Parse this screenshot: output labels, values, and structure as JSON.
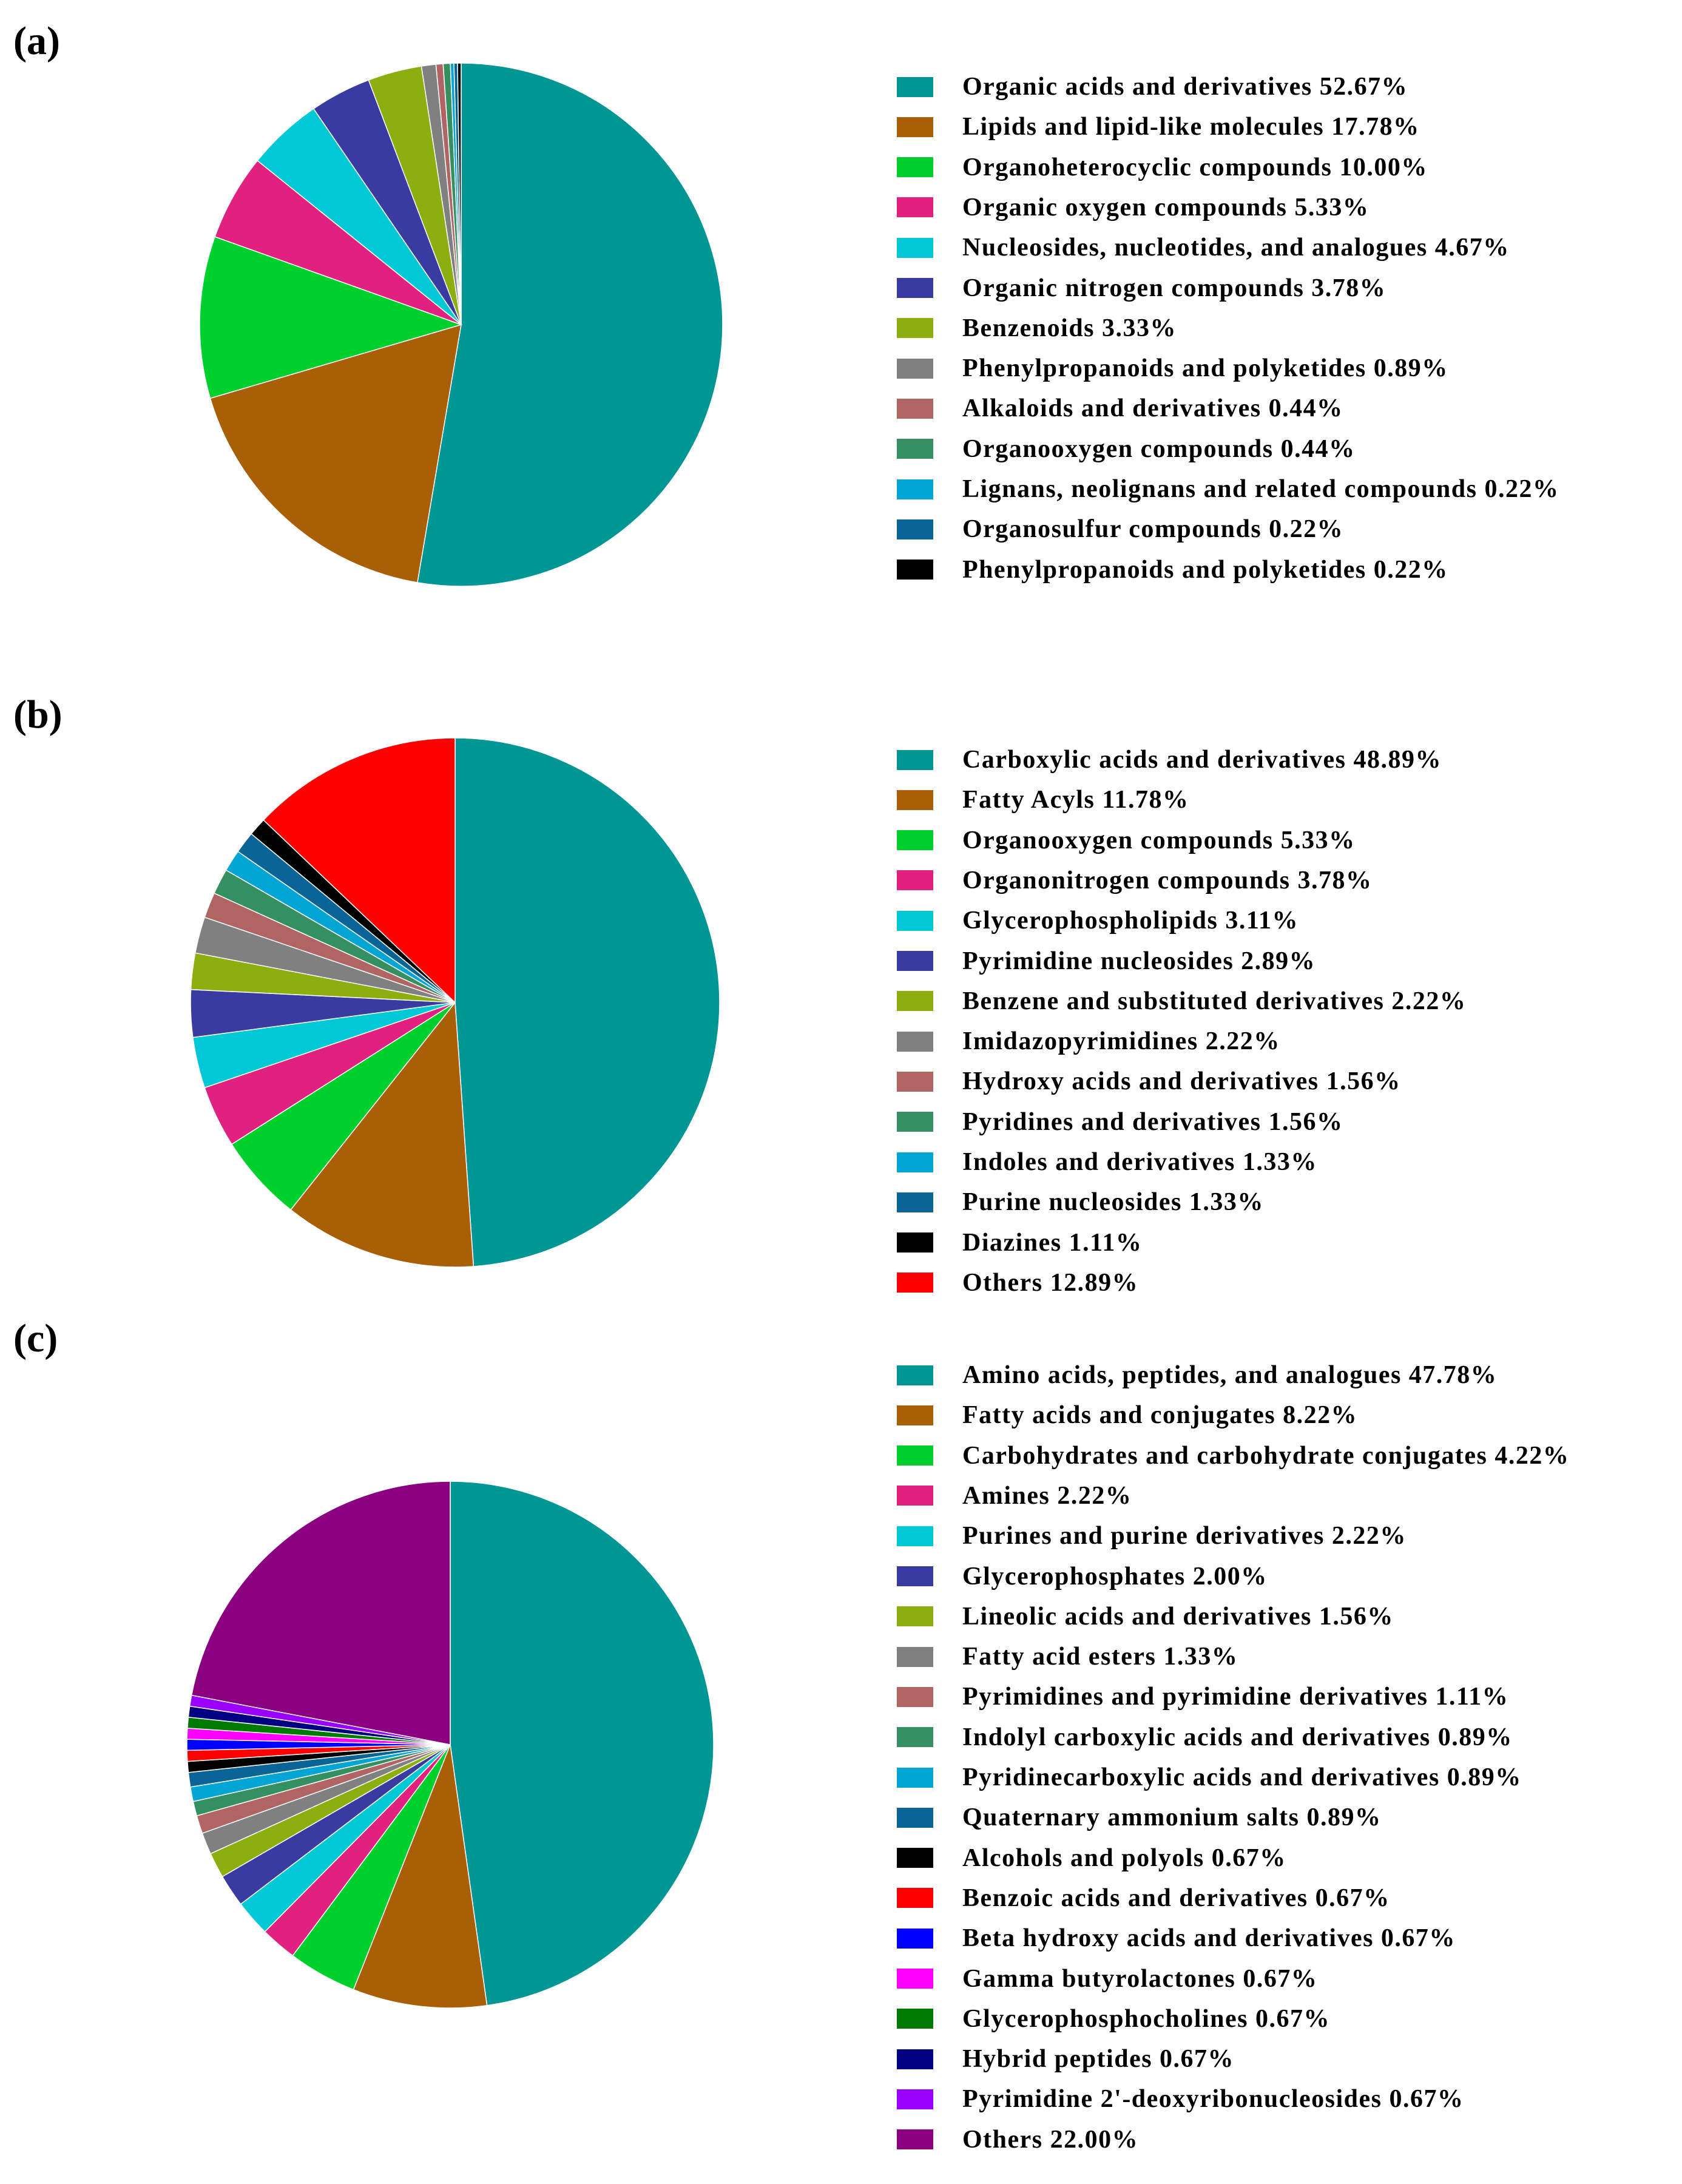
{
  "chart_data": [
    {
      "type": "pie",
      "panel_label": "(a)",
      "start_angle_deg": 0,
      "direction": "clockwise",
      "slices": [
        {
          "label": "Organic acids and derivatives 52.67%",
          "value": 52.67,
          "color": "#009693"
        },
        {
          "label": "Lipids and lipid-like molecules 17.78%",
          "value": 17.78,
          "color": "#a85f06"
        },
        {
          "label": "Organoheterocyclic compounds 10.00%",
          "value": 10.0,
          "color": "#00d02d"
        },
        {
          "label": "Organic oxygen compounds 5.33%",
          "value": 5.33,
          "color": "#e0217f"
        },
        {
          "label": "Nucleosides, nucleotides, and analogues 4.67%",
          "value": 4.67,
          "color": "#00c9d5"
        },
        {
          "label": "Organic nitrogen compounds 3.78%",
          "value": 3.78,
          "color": "#3a3ba0"
        },
        {
          "label": "Benzenoids 3.33%",
          "value": 3.33,
          "color": "#8caf0f"
        },
        {
          "label": "Phenylpropanoids and polyketides 0.89%",
          "value": 0.89,
          "color": "#808080"
        },
        {
          "label": "Alkaloids and derivatives 0.44%",
          "value": 0.44,
          "color": "#b06464"
        },
        {
          "label": "Organooxygen compounds 0.44%",
          "value": 0.44,
          "color": "#349060"
        },
        {
          "label": "Lignans, neolignans and related compounds 0.22%",
          "value": 0.22,
          "color": "#00a5d4"
        },
        {
          "label": "Organosulfur compounds 0.22%",
          "value": 0.22,
          "color": "#0a6496"
        },
        {
          "label": "Phenylpropanoids and polyketides 0.22%",
          "value": 0.22,
          "color": "#000000"
        }
      ]
    },
    {
      "type": "pie",
      "panel_label": "(b)",
      "start_angle_deg": 0,
      "direction": "clockwise",
      "slices": [
        {
          "label": "Carboxylic acids and derivatives 48.89%",
          "value": 48.89,
          "color": "#009693"
        },
        {
          "label": "Fatty Acyls 11.78%",
          "value": 11.78,
          "color": "#a85f06"
        },
        {
          "label": "Organooxygen compounds 5.33%",
          "value": 5.33,
          "color": "#00d02d"
        },
        {
          "label": "Organonitrogen compounds 3.78%",
          "value": 3.78,
          "color": "#e0217f"
        },
        {
          "label": "Glycerophospholipids 3.11%",
          "value": 3.11,
          "color": "#00c9d5"
        },
        {
          "label": "Pyrimidine nucleosides 2.89%",
          "value": 2.89,
          "color": "#3a3ba0"
        },
        {
          "label": "Benzene and substituted derivatives 2.22%",
          "value": 2.22,
          "color": "#8caf0f"
        },
        {
          "label": "Imidazopyrimidines 2.22%",
          "value": 2.22,
          "color": "#808080"
        },
        {
          "label": "Hydroxy acids and derivatives 1.56%",
          "value": 1.56,
          "color": "#b06464"
        },
        {
          "label": "Pyridines and derivatives 1.56%",
          "value": 1.56,
          "color": "#349060"
        },
        {
          "label": "Indoles and derivatives 1.33%",
          "value": 1.33,
          "color": "#00a5d4"
        },
        {
          "label": "Purine nucleosides 1.33%",
          "value": 1.33,
          "color": "#0a6496"
        },
        {
          "label": "Diazines 1.11%",
          "value": 1.11,
          "color": "#000000"
        },
        {
          "label": "Others 12.89%",
          "value": 12.89,
          "color": "#ff0000"
        }
      ]
    },
    {
      "type": "pie",
      "panel_label": "(c)",
      "start_angle_deg": 0,
      "direction": "clockwise",
      "slices": [
        {
          "label": "Amino acids, peptides, and analogues 47.78%",
          "value": 47.78,
          "color": "#009693"
        },
        {
          "label": "Fatty acids and conjugates 8.22%",
          "value": 8.22,
          "color": "#a85f06"
        },
        {
          "label": "Carbohydrates and carbohydrate conjugates 4.22%",
          "value": 4.22,
          "color": "#00d02d"
        },
        {
          "label": "Amines 2.22%",
          "value": 2.22,
          "color": "#e0217f"
        },
        {
          "label": "Purines and purine derivatives 2.22%",
          "value": 2.22,
          "color": "#00c9d5"
        },
        {
          "label": "Glycerophosphates 2.00%",
          "value": 2.0,
          "color": "#3a3ba0"
        },
        {
          "label": "Lineolic acids and derivatives 1.56%",
          "value": 1.56,
          "color": "#8caf0f"
        },
        {
          "label": "Fatty acid esters 1.33%",
          "value": 1.33,
          "color": "#808080"
        },
        {
          "label": "Pyrimidines and pyrimidine derivatives 1.11%",
          "value": 1.11,
          "color": "#b06464"
        },
        {
          "label": "Indolyl carboxylic acids and derivatives 0.89%",
          "value": 0.89,
          "color": "#349060"
        },
        {
          "label": "Pyridinecarboxylic acids and derivatives 0.89%",
          "value": 0.89,
          "color": "#00a5d4"
        },
        {
          "label": "Quaternary ammonium salts 0.89%",
          "value": 0.89,
          "color": "#0a6496"
        },
        {
          "label": "Alcohols and polyols 0.67%",
          "value": 0.67,
          "color": "#000000"
        },
        {
          "label": "Benzoic acids and derivatives 0.67%",
          "value": 0.67,
          "color": "#ff0000"
        },
        {
          "label": "Beta hydroxy acids and derivatives 0.67%",
          "value": 0.67,
          "color": "#0000ff"
        },
        {
          "label": "Gamma butyrolactones  0.67%",
          "value": 0.67,
          "color": "#ff00ff"
        },
        {
          "label": "Glycerophosphocholines 0.67%",
          "value": 0.67,
          "color": "#007a00"
        },
        {
          "label": "Hybrid peptides 0.67%",
          "value": 0.67,
          "color": "#000080"
        },
        {
          "label": "Pyrimidine 2'-deoxyribonucleosides 0.67%",
          "value": 0.67,
          "color": "#9a00ff"
        },
        {
          "label": "Others 22.00%",
          "value": 22.0,
          "color": "#8b0080"
        }
      ]
    }
  ]
}
